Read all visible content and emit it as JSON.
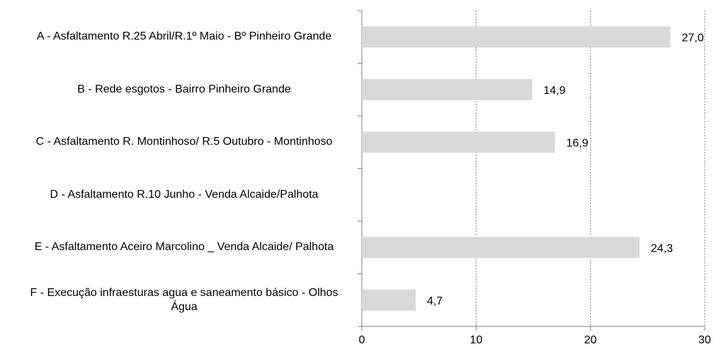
{
  "chart_data": {
    "type": "bar",
    "orientation": "horizontal",
    "categories": [
      "A - Asfaltamento R.25 Abril/R.1º Maio - Bº Pinheiro Grande",
      "B - Rede esgotos - Bairro Pinheiro Grande",
      "C - Asfaltamento R. Montinhoso/ R.5 Outubro - Montinhoso",
      "D - Asfaltamento R.10 Junho - Venda Alcaide/Palhota",
      "E - Asfaltamento Aceiro Marcolino _ Venda Alcaide/ Palhota",
      "F - Execução infraesturas agua e saneamento básico - Olhos Água"
    ],
    "values": [
      27.0,
      14.9,
      16.9,
      null,
      24.3,
      4.7
    ],
    "value_labels": [
      "27,0",
      "14,9",
      "16,9",
      null,
      "24,3",
      "4,7"
    ],
    "color": "#d9d9d9",
    "xlim": [
      0,
      30
    ],
    "xticks": [
      0,
      10,
      20,
      30
    ],
    "grid": true
  }
}
